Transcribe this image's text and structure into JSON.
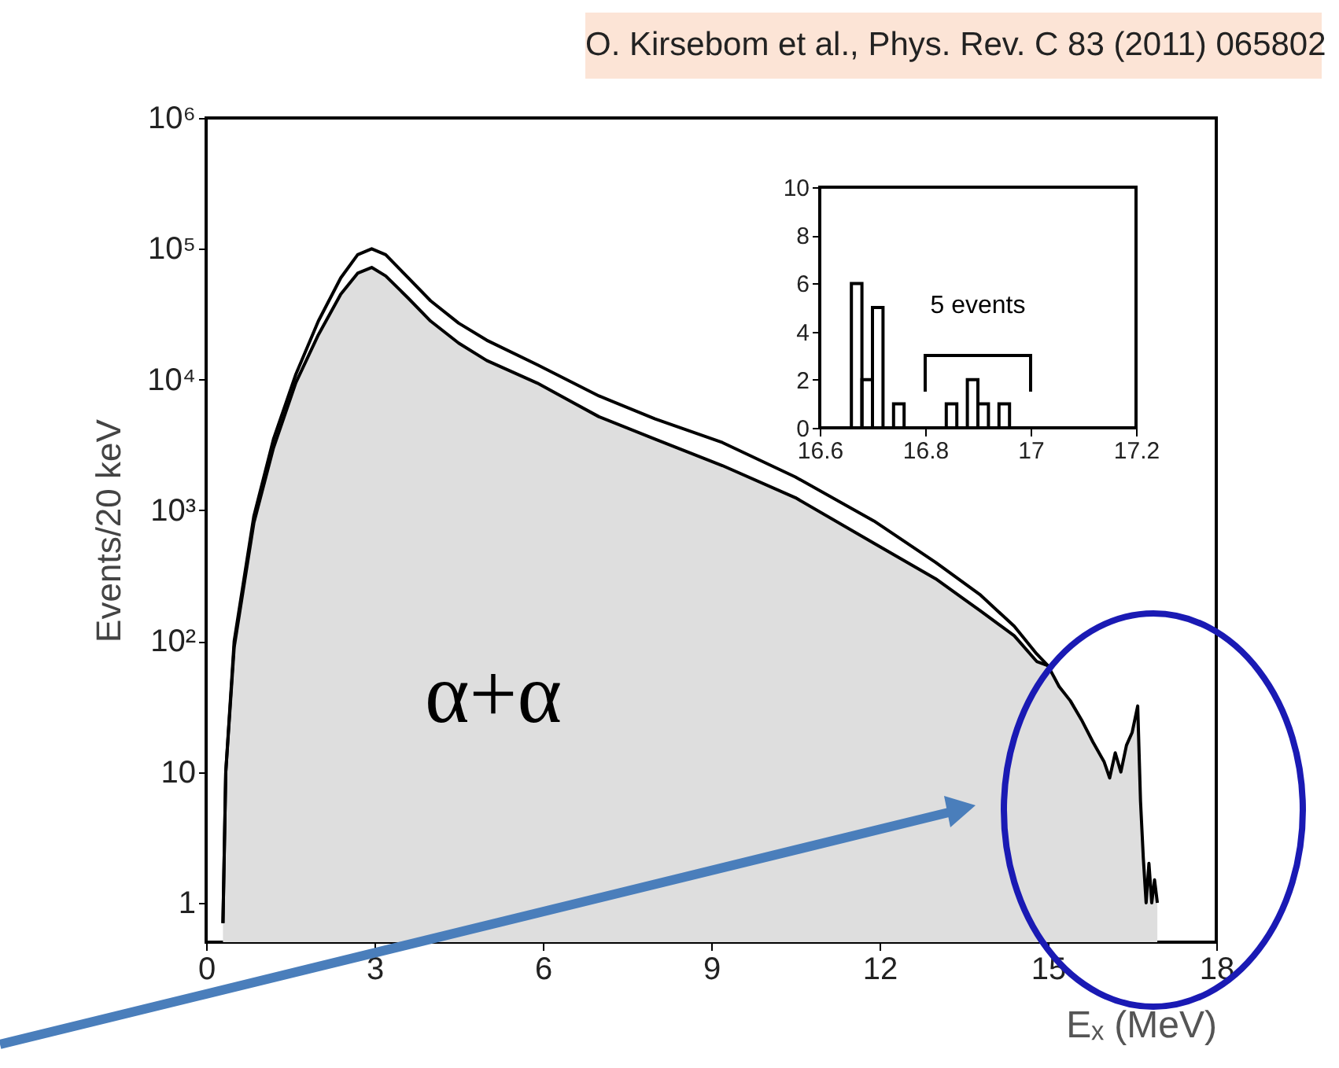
{
  "chart_data": [
    {
      "type": "line",
      "xlabel": "Eₓ (MeV)",
      "ylabel": "Events/20 keV",
      "log": "y",
      "xlim": [
        0,
        18
      ],
      "xticks": [
        0,
        3,
        6,
        9,
        12,
        15,
        18
      ],
      "ylim": [
        0.5,
        1000000
      ],
      "yticks": [
        1,
        10,
        {
          "value": 100,
          "label": "10²"
        },
        {
          "value": 1000,
          "label": "10³"
        },
        {
          "value": 10000,
          "label": "10⁴"
        },
        {
          "value": 100000,
          "label": "10⁵"
        },
        {
          "value": 1000000,
          "label": "10⁶"
        }
      ],
      "annotations": [
        "O. Kirsebom et al., Phys. Rev. C 83 (2011) 065802",
        "α+α"
      ],
      "series": [
        {
          "type": "area",
          "color": "#000000",
          "x": [
            0.3,
            0.35,
            0.5,
            0.85,
            1.2,
            1.6,
            2.0,
            2.4,
            2.7,
            2.95,
            3.2,
            3.6,
            4.0,
            4.5,
            5.0,
            5.9,
            7.0,
            8.0,
            9.2,
            10.5,
            11.9,
            13.0,
            13.8,
            14.4,
            14.8,
            15.0,
            15.2,
            15.4,
            15.6,
            15.8,
            16.0,
            16.1,
            16.2,
            16.3,
            16.4,
            16.5,
            16.6,
            16.65,
            16.7,
            16.75,
            16.8,
            16.85,
            16.9,
            16.95
          ],
          "values": [
            0.7,
            10,
            90,
            800,
            3000,
            9500,
            22000,
            45000,
            65000,
            72000,
            62000,
            42000,
            28000,
            19000,
            14000,
            9400,
            5200,
            3500,
            2200,
            1250,
            560,
            300,
            170,
            110,
            70,
            65,
            45,
            35,
            25,
            17,
            12,
            9,
            14,
            10,
            16,
            20,
            32,
            6,
            2.2,
            1,
            2,
            1,
            1.5,
            1
          ]
        },
        {
          "type": "line",
          "color": "#000000",
          "x": [
            0.3,
            0.35,
            0.5,
            0.85,
            1.2,
            1.6,
            2.0,
            2.4,
            2.7,
            2.95,
            3.2,
            3.6,
            4.0,
            4.5,
            5.0,
            5.9,
            7.0,
            8.0,
            9.2,
            10.5,
            11.9,
            13.0,
            13.8,
            14.4,
            14.8,
            15.0
          ],
          "values": [
            0.7,
            10,
            100,
            900,
            3500,
            11000,
            28000,
            60000,
            90000,
            100000,
            90000,
            60000,
            40000,
            27000,
            20000,
            13000,
            7500,
            5000,
            3300,
            1800,
            830,
            400,
            225,
            130,
            80,
            65
          ]
        }
      ]
    },
    {
      "type": "histogram",
      "color": "#000000",
      "xlim": [
        16.6,
        17.2
      ],
      "xticks": [
        16.6,
        16.8,
        17,
        17.2
      ],
      "ylim": [
        0,
        10
      ],
      "yticks": [
        0,
        2,
        4,
        6,
        8,
        10
      ],
      "bins": [
        16.66,
        16.68,
        16.7,
        16.72,
        16.74,
        16.76,
        16.78,
        16.8,
        16.82,
        16.84,
        16.86,
        16.88,
        16.9,
        16.92,
        16.94,
        16.96,
        16.98,
        17.0,
        17.02,
        17.04,
        17.06,
        17.08,
        17.1,
        17.12,
        17.14,
        17.16,
        17.18,
        17.2
      ],
      "values": [
        6,
        2,
        5,
        0,
        1,
        0,
        0,
        0,
        0,
        1,
        0,
        2,
        1,
        0,
        1,
        0,
        0,
        0,
        0,
        0,
        0,
        0,
        0,
        0,
        0,
        0,
        0
      ],
      "annotations": [
        "5 events"
      ]
    }
  ]
}
